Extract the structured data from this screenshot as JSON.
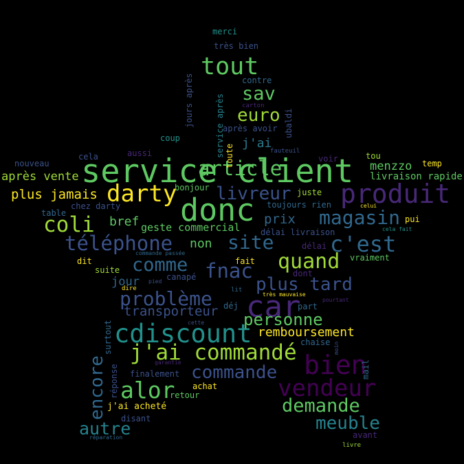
{
  "palette": {
    "background": "#000000",
    "colors": [
      "#5cc863",
      "#3b528b",
      "#440154",
      "#21908d",
      "#fde725",
      "#31688e",
      "#482878",
      "#2a788e",
      "#a0da39",
      "#26828e"
    ]
  },
  "words": [
    {
      "text": "service client",
      "color": "#5ec962"
    },
    {
      "text": "donc",
      "color": "#5ec962"
    },
    {
      "text": "produit",
      "color": "#482878"
    },
    {
      "text": "car",
      "color": "#482878"
    },
    {
      "text": "cdiscount",
      "color": "#21918c"
    },
    {
      "text": "bien",
      "color": "#440154"
    },
    {
      "text": "vendeur",
      "color": "#440154"
    },
    {
      "text": "j'ai commandé",
      "color": "#a0da39"
    },
    {
      "text": "darty",
      "color": "#fde725"
    },
    {
      "text": "tout",
      "color": "#5ec962"
    },
    {
      "text": "alor",
      "color": "#5ec962"
    },
    {
      "text": "article",
      "color": "#5ec962"
    },
    {
      "text": "livreur",
      "color": "#3b528b"
    },
    {
      "text": "téléphone",
      "color": "#3b528b"
    },
    {
      "text": "coli",
      "color": "#a0da39"
    },
    {
      "text": "magasin",
      "color": "#31688e"
    },
    {
      "text": "c'est",
      "color": "#31688e"
    },
    {
      "text": "site",
      "color": "#31688e"
    },
    {
      "text": "quand",
      "color": "#a0da39"
    },
    {
      "text": "problème",
      "color": "#3b528b"
    },
    {
      "text": "comme",
      "color": "#31688e"
    },
    {
      "text": "fnac",
      "color": "#3b528b"
    },
    {
      "text": "plus tard",
      "color": "#3b528b"
    },
    {
      "text": "commande",
      "color": "#3b528b"
    },
    {
      "text": "demande",
      "color": "#5ec962"
    },
    {
      "text": "meuble",
      "color": "#26828e"
    },
    {
      "text": "encore",
      "color": "#31688e"
    },
    {
      "text": "autre",
      "color": "#26828e"
    },
    {
      "text": "personne",
      "color": "#5ec962"
    },
    {
      "text": "sav",
      "color": "#5ec962"
    },
    {
      "text": "euro",
      "color": "#a0da39"
    },
    {
      "text": "plus jamais",
      "color": "#fde725"
    },
    {
      "text": "après vente",
      "color": "#a0da39"
    },
    {
      "text": "transporteur",
      "color": "#3b528b"
    },
    {
      "text": "remboursement",
      "color": "#fde725"
    },
    {
      "text": "bref",
      "color": "#5ec962"
    },
    {
      "text": "prix",
      "color": "#31688e"
    },
    {
      "text": "non",
      "color": "#5ec962"
    },
    {
      "text": "jour",
      "color": "#31688e"
    },
    {
      "text": "j'ai",
      "color": "#2a788e"
    },
    {
      "text": "menzzo",
      "color": "#5ec962"
    },
    {
      "text": "geste commercial",
      "color": "#5ec962"
    },
    {
      "text": "livraison rapide",
      "color": "#5ec962"
    },
    {
      "text": "merci",
      "color": "#21918c"
    },
    {
      "text": "très bien",
      "color": "#3b528b"
    },
    {
      "text": "contre",
      "color": "#31688e"
    },
    {
      "text": "après avoir",
      "color": "#3b528b"
    },
    {
      "text": "jours après",
      "color": "#3b528b"
    },
    {
      "text": "service après",
      "color": "#26828e"
    },
    {
      "text": "coup",
      "color": "#21918c"
    },
    {
      "text": "toute",
      "color": "#fde725"
    },
    {
      "text": "ubaldi",
      "color": "#3b528b"
    },
    {
      "text": "fauteuil",
      "color": "#3b528b"
    },
    {
      "text": "carton",
      "color": "#482878"
    },
    {
      "text": "nouveau",
      "color": "#3b528b"
    },
    {
      "text": "cela",
      "color": "#3b528b"
    },
    {
      "text": "aussi",
      "color": "#482878"
    },
    {
      "text": "voir",
      "color": "#482878"
    },
    {
      "text": "tou",
      "color": "#a0da39"
    },
    {
      "text": "temp",
      "color": "#fde725"
    },
    {
      "text": "bonjour",
      "color": "#5ec962"
    },
    {
      "text": "juste",
      "color": "#a0da39"
    },
    {
      "text": "chez darty",
      "color": "#3b528b"
    },
    {
      "text": "toujours rien",
      "color": "#31688e"
    },
    {
      "text": "celui",
      "color": "#fde725"
    },
    {
      "text": "table",
      "color": "#31688e"
    },
    {
      "text": "délai livraison",
      "color": "#3b528b"
    },
    {
      "text": "pui",
      "color": "#fde725"
    },
    {
      "text": "cela fait",
      "color": "#21918c"
    },
    {
      "text": "délai",
      "color": "#482878"
    },
    {
      "text": "commande passée",
      "color": "#31688e"
    },
    {
      "text": "dit",
      "color": "#fde725"
    },
    {
      "text": "fait",
      "color": "#fde725"
    },
    {
      "text": "vraiment",
      "color": "#5ec962"
    },
    {
      "text": "suite",
      "color": "#a0da39"
    },
    {
      "text": "canapé",
      "color": "#3b528b"
    },
    {
      "text": "dont",
      "color": "#482878"
    },
    {
      "text": "pied",
      "color": "#3b528b"
    },
    {
      "text": "dire",
      "color": "#fde725"
    },
    {
      "text": "lit",
      "color": "#31688e"
    },
    {
      "text": "très mauvaise",
      "color": "#fde725"
    },
    {
      "text": "pourtant",
      "color": "#482878"
    },
    {
      "text": "déj",
      "color": "#31688e"
    },
    {
      "text": "part",
      "color": "#31688e"
    },
    {
      "text": "cette",
      "color": "#3b528b"
    },
    {
      "text": "surtout",
      "color": "#31688e"
    },
    {
      "text": "chaise",
      "color": "#31688e"
    },
    {
      "text": "mail",
      "color": "#31688e"
    },
    {
      "text": "moin",
      "color": "#3b528b"
    },
    {
      "text": "garantie",
      "color": "#482878"
    },
    {
      "text": "réponse",
      "color": "#3b528b"
    },
    {
      "text": "finalement",
      "color": "#3b528b"
    },
    {
      "text": "achat",
      "color": "#fde725"
    },
    {
      "text": "retour",
      "color": "#5ec962"
    },
    {
      "text": "j'ai acheté",
      "color": "#fde725"
    },
    {
      "text": "disant",
      "color": "#3b528b"
    },
    {
      "text": "avant",
      "color": "#482878"
    },
    {
      "text": "réparation",
      "color": "#31688e"
    },
    {
      "text": "livre",
      "color": "#a0da39"
    }
  ]
}
